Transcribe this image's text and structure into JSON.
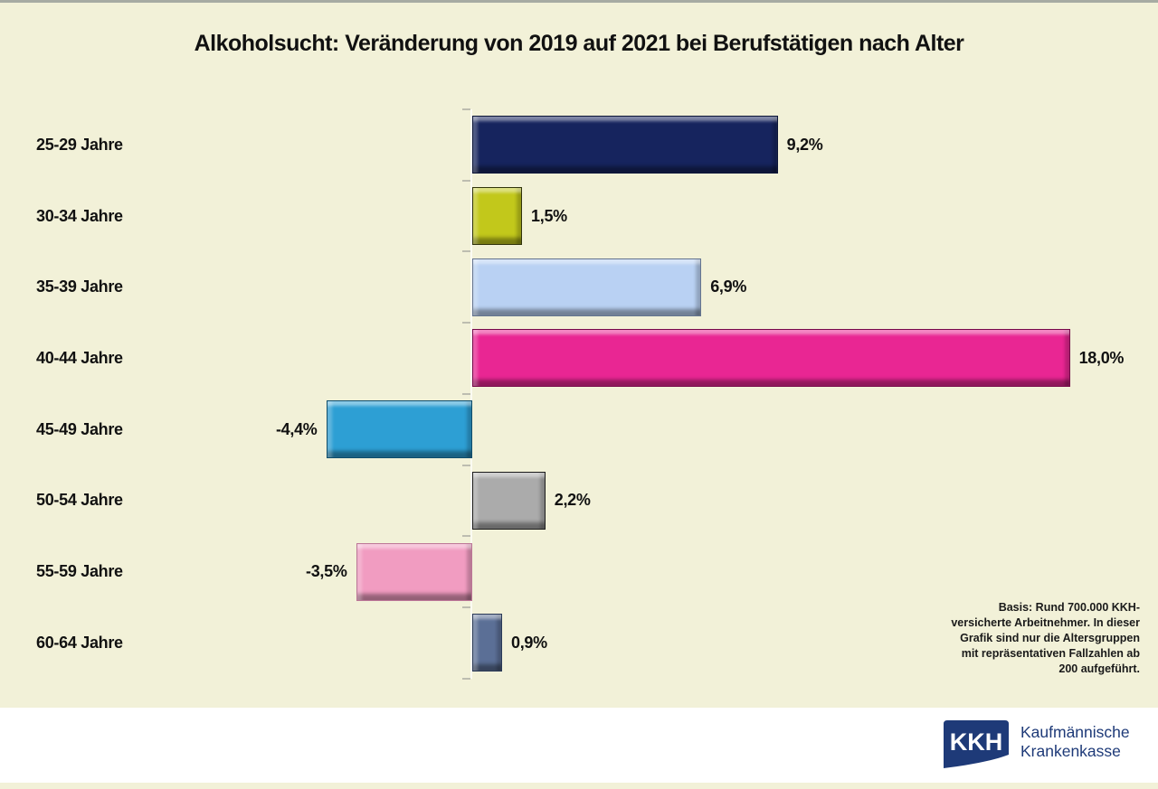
{
  "title": "Alkoholsucht: Veränderung von 2019 auf 2021 bei Berufstätigen nach Alter",
  "chart_data": {
    "type": "bar",
    "orientation": "horizontal",
    "title": "Alkoholsucht: Veränderung von 2019 auf 2021 bei Berufstätigen nach Alter",
    "categories": [
      "25-29 Jahre",
      "30-34 Jahre",
      "35-39 Jahre",
      "40-44 Jahre",
      "45-49 Jahre",
      "50-54 Jahre",
      "55-59 Jahre",
      "60-64 Jahre"
    ],
    "values": [
      9.2,
      1.5,
      6.9,
      18.0,
      -4.4,
      2.2,
      -3.5,
      0.9
    ],
    "value_labels": [
      "9,2%",
      "1,5%",
      "6,9%",
      "18,0%",
      "-4,4%",
      "2,2%",
      "-3,5%",
      "0,9%"
    ],
    "unit": "%",
    "baseline": 0,
    "xlim": [
      -5,
      20
    ],
    "grid": false,
    "legend": false,
    "bar_colors": [
      {
        "fill": "#16245e",
        "border": "#0b1538"
      },
      {
        "fill": "#c2c81b",
        "border": "#30330a"
      },
      {
        "fill": "#b9d1f3",
        "border": "#64748f"
      },
      {
        "fill": "#e92693",
        "border": "#76094a"
      },
      {
        "fill": "#2d9fd4",
        "border": "#0f4d6b"
      },
      {
        "fill": "#ababab",
        "border": "#1c1c1c"
      },
      {
        "fill": "#f19cc1",
        "border": "#bc7697"
      },
      {
        "fill": "#5b6f96",
        "border": "#2b3a58"
      }
    ]
  },
  "note": "Basis: Rund 700.000 KKH-versicherte Arbeitnehmer. In dieser Grafik sind nur die Altersgruppen mit repräsentativen Fallzahlen ab 200 aufgeführt.",
  "logo": {
    "acronym": "KKH",
    "name_line1": "Kaufmännische",
    "name_line2": "Krankenkasse",
    "brand_color": "#1e3a78"
  },
  "colors": {
    "background": "#f2f1d8",
    "footer_band": "#ffffff",
    "top_line": "#a7aba3",
    "text": "#111111",
    "axis_line": "#fbfbf2",
    "axis_tick": "#bdbdb0"
  }
}
